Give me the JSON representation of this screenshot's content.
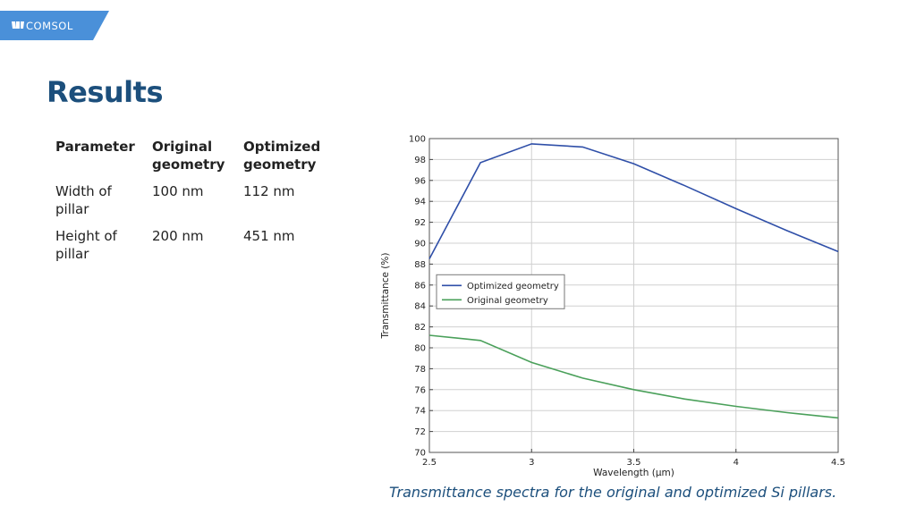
{
  "brand": {
    "name": "COMSOL",
    "color": "#4a90d9",
    "icon": "comsol-logo-icon"
  },
  "title": "Results",
  "table": {
    "headers": [
      "Parameter",
      "Original geometry",
      "Optimized geometry"
    ],
    "rows": [
      [
        "Width of pillar",
        "100 nm",
        "112 nm"
      ],
      [
        "Height of pillar",
        "200 nm",
        "451 nm"
      ]
    ]
  },
  "chart_data": {
    "type": "line",
    "xlabel": "Wavelength (µm)",
    "ylabel": "Transmittance (%)",
    "xlim": [
      2.5,
      4.5
    ],
    "ylim": [
      70,
      100
    ],
    "xticks": [
      "2.5",
      "3",
      "3.5",
      "4",
      "4.5"
    ],
    "yticks": [
      "70",
      "72",
      "74",
      "76",
      "78",
      "80",
      "82",
      "84",
      "86",
      "88",
      "90",
      "92",
      "94",
      "96",
      "98",
      "100"
    ],
    "grid": true,
    "legend_position": "center-left",
    "series": [
      {
        "name": "Optimized geometry",
        "color": "#2f4fa8",
        "x": [
          2.5,
          2.75,
          3.0,
          3.25,
          3.5,
          3.75,
          4.0,
          4.25,
          4.5
        ],
        "y": [
          88.5,
          97.7,
          99.5,
          99.2,
          97.6,
          95.5,
          93.3,
          91.2,
          89.2
        ]
      },
      {
        "name": "Original geometry",
        "color": "#4aa05a",
        "x": [
          2.5,
          2.75,
          3.0,
          3.25,
          3.5,
          3.75,
          4.0,
          4.25,
          4.5
        ],
        "y": [
          81.2,
          80.7,
          78.6,
          77.1,
          76.0,
          75.1,
          74.4,
          73.8,
          73.3
        ]
      }
    ]
  },
  "caption": "Transmittance spectra for the original and optimized Si pillars."
}
